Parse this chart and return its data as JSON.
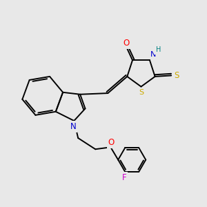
{
  "bg_color": "#e8e8e8",
  "atom_colors": {
    "O": "#ff0000",
    "N": "#0000cd",
    "S": "#ccaa00",
    "F": "#cc00cc",
    "H_on_N": "#008080",
    "C": "#000000"
  },
  "lw": 1.4,
  "fontsize": 7.5
}
